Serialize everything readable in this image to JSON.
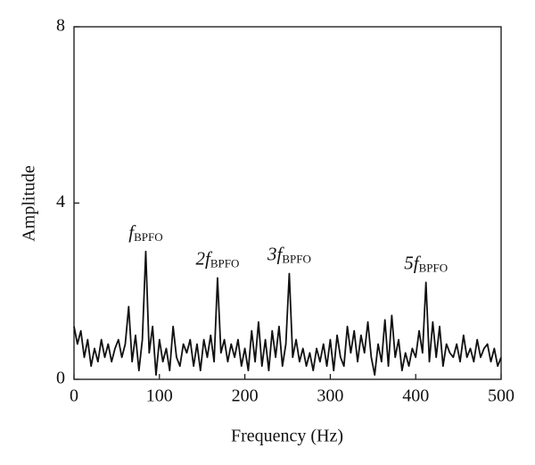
{
  "chart_data": {
    "type": "line",
    "xlabel": "Frequency (Hz)",
    "ylabel": "Amplitude",
    "x": [
      0,
      4,
      8,
      12,
      16,
      20,
      24,
      28,
      32,
      36,
      40,
      44,
      48,
      52,
      56,
      60,
      64,
      68,
      72,
      76,
      80,
      84,
      88,
      92,
      96,
      100,
      104,
      108,
      112,
      116,
      120,
      124,
      128,
      132,
      136,
      140,
      144,
      148,
      152,
      156,
      160,
      164,
      168,
      172,
      176,
      180,
      184,
      188,
      192,
      196,
      200,
      204,
      208,
      212,
      216,
      220,
      224,
      228,
      232,
      236,
      240,
      244,
      248,
      252,
      256,
      260,
      264,
      268,
      272,
      276,
      280,
      284,
      288,
      292,
      296,
      300,
      304,
      308,
      312,
      316,
      320,
      324,
      328,
      332,
      336,
      340,
      344,
      348,
      352,
      356,
      360,
      364,
      368,
      372,
      376,
      380,
      384,
      388,
      392,
      396,
      400,
      404,
      408,
      412,
      416,
      420,
      424,
      428,
      432,
      436,
      440,
      444,
      448,
      452,
      456,
      460,
      464,
      468,
      472,
      476,
      480,
      484,
      488,
      492,
      496,
      500
    ],
    "series": [
      {
        "name": "Amplitude",
        "color": "#111111",
        "values": [
          1.2,
          0.8,
          1.1,
          0.5,
          0.9,
          0.3,
          0.7,
          0.4,
          0.9,
          0.5,
          0.8,
          0.4,
          0.7,
          0.9,
          0.5,
          0.8,
          1.65,
          0.4,
          1.0,
          0.2,
          0.9,
          2.9,
          0.6,
          1.2,
          0.1,
          0.9,
          0.4,
          0.7,
          0.2,
          1.2,
          0.5,
          0.3,
          0.8,
          0.6,
          0.9,
          0.3,
          0.8,
          0.2,
          0.9,
          0.5,
          1.0,
          0.4,
          2.3,
          0.6,
          0.9,
          0.4,
          0.8,
          0.5,
          0.9,
          0.3,
          0.7,
          0.2,
          1.1,
          0.4,
          1.3,
          0.3,
          0.9,
          0.2,
          1.1,
          0.5,
          1.2,
          0.3,
          0.8,
          2.4,
          0.5,
          0.9,
          0.4,
          0.7,
          0.3,
          0.6,
          0.2,
          0.7,
          0.4,
          0.8,
          0.3,
          0.9,
          0.2,
          1.0,
          0.5,
          0.3,
          1.2,
          0.6,
          1.1,
          0.4,
          1.0,
          0.6,
          1.3,
          0.5,
          0.1,
          0.8,
          0.4,
          1.35,
          0.3,
          1.45,
          0.5,
          0.9,
          0.2,
          0.6,
          0.3,
          0.7,
          0.5,
          1.1,
          0.6,
          2.2,
          0.4,
          1.3,
          0.5,
          1.2,
          0.3,
          0.8,
          0.6,
          0.5,
          0.8,
          0.4,
          1.0,
          0.5,
          0.7,
          0.4,
          0.9,
          0.5,
          0.7,
          0.8,
          0.4,
          0.7,
          0.3,
          0.5
        ]
      }
    ],
    "annotations": [
      {
        "text": "f",
        "sub": "BPFO",
        "x": 84
      },
      {
        "text": "2f",
        "sub": "BPFO",
        "x": 168
      },
      {
        "text": "3f",
        "sub": "BPFO",
        "x": 252
      },
      {
        "text": "5f",
        "sub": "BPFO",
        "x": 412
      }
    ],
    "xlim": [
      0,
      500
    ],
    "xticks": [
      0,
      100,
      200,
      300,
      400,
      500
    ],
    "ylim": [
      0,
      8
    ],
    "yticks": [
      0,
      4,
      8
    ]
  }
}
